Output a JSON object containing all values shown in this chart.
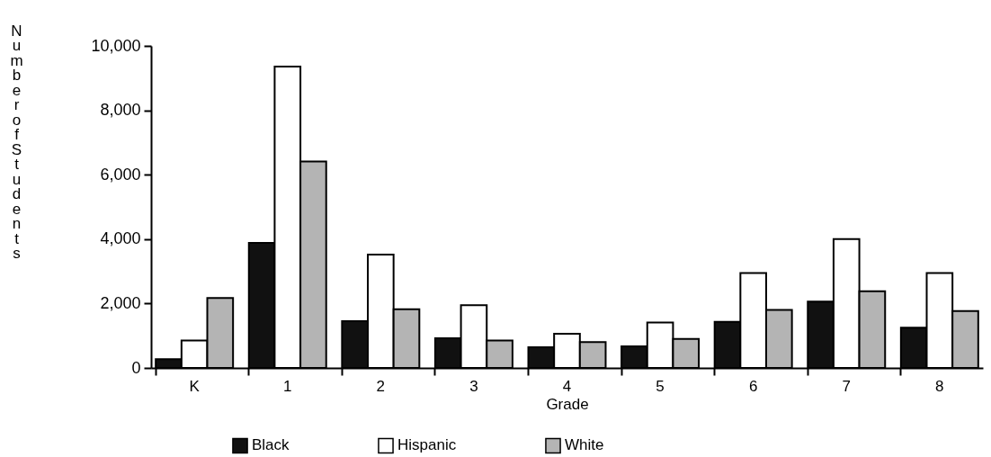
{
  "chart_data": {
    "type": "bar",
    "xlabel": "Grade",
    "ylabel": "Number of Students",
    "categories": [
      "K",
      "1",
      "2",
      "3",
      "4",
      "5",
      "6",
      "7",
      "8"
    ],
    "series": [
      {
        "name": "Black",
        "color": "#111111",
        "values": [
          270,
          3880,
          1450,
          920,
          640,
          670,
          1430,
          2060,
          1250
        ]
      },
      {
        "name": "Hispanic",
        "color": "#ffffff",
        "values": [
          850,
          9360,
          3520,
          1950,
          1060,
          1410,
          2950,
          4000,
          2950
        ]
      },
      {
        "name": "White",
        "color": "#b4b4b4",
        "values": [
          2170,
          6410,
          1820,
          850,
          800,
          900,
          1800,
          2380,
          1770
        ]
      }
    ],
    "ylim": [
      0,
      10000
    ],
    "yticks": [
      0,
      {
        "value": 2000,
        "label": "2,000"
      },
      {
        "value": 4000,
        "label": "4,000"
      },
      {
        "value": 6000,
        "label": "6,000"
      },
      {
        "value": 8000,
        "label": "8,000"
      },
      {
        "value": 10000,
        "label": "10,000"
      }
    ],
    "grid": false,
    "legend": "bottom"
  }
}
